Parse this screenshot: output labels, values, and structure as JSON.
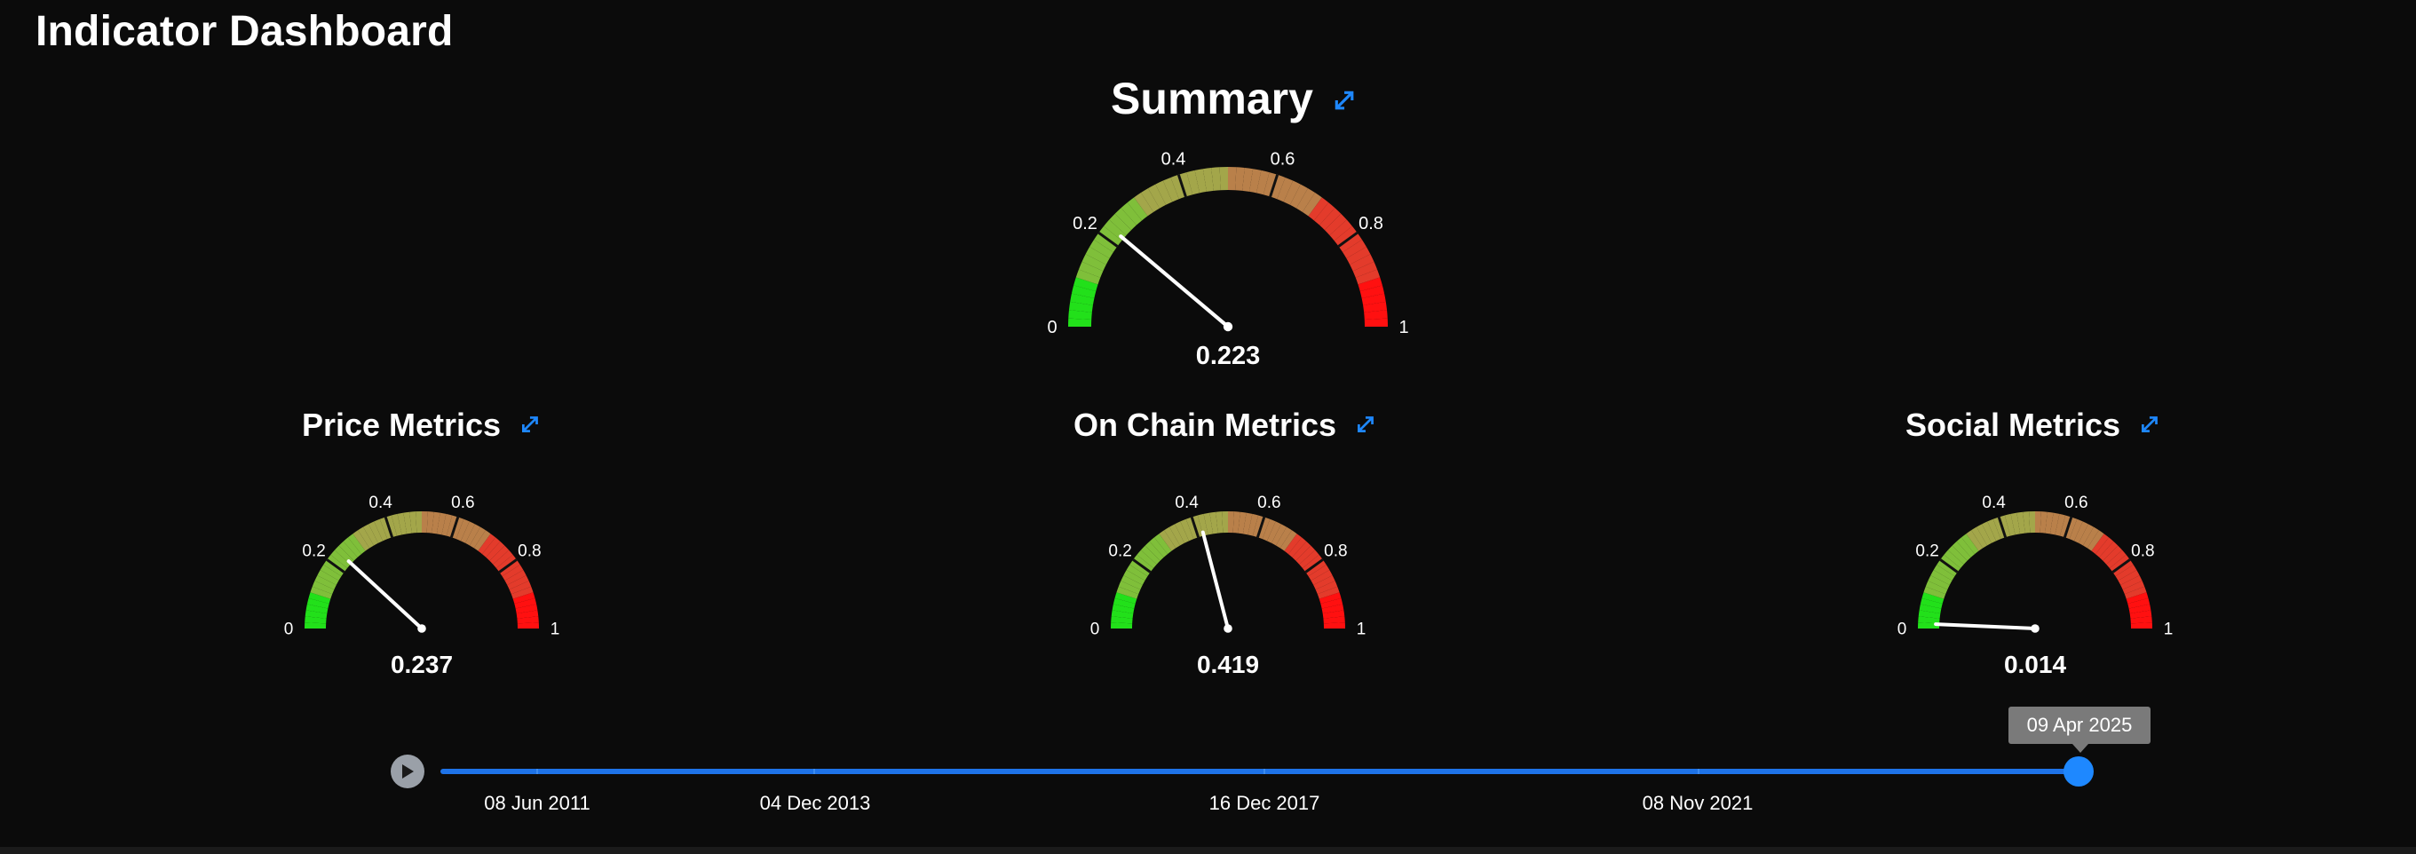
{
  "app": {
    "title": "Indicator Dashboard"
  },
  "gauges": [
    {
      "key": "summary",
      "title": "Summary",
      "value": 0.223,
      "value_text": "0.223"
    },
    {
      "key": "price",
      "title": "Price Metrics",
      "value": 0.237,
      "value_text": "0.237"
    },
    {
      "key": "onchain",
      "title": "On Chain Metrics",
      "value": 0.419,
      "value_text": "0.419"
    },
    {
      "key": "social",
      "title": "Social Metrics",
      "value": 0.014,
      "value_text": "0.014"
    }
  ],
  "gauge_ticks": [
    "0",
    "0.2",
    "0.4",
    "0.6",
    "0.8",
    "1"
  ],
  "gauge_colors": [
    "#22e01a",
    "#7fbf3a",
    "#a3a64a",
    "#b9804a",
    "#e33b2b",
    "#ff1010"
  ],
  "timeline": {
    "selected_date": "09 Apr 2025",
    "date_labels": [
      "08 Jun 2011",
      "04 Dec 2013",
      "16 Dec 2017",
      "08 Nov 2021"
    ],
    "accent": "#1e73e8"
  },
  "icons": {
    "expand": "expand-arrows-icon",
    "play": "play-icon"
  }
}
